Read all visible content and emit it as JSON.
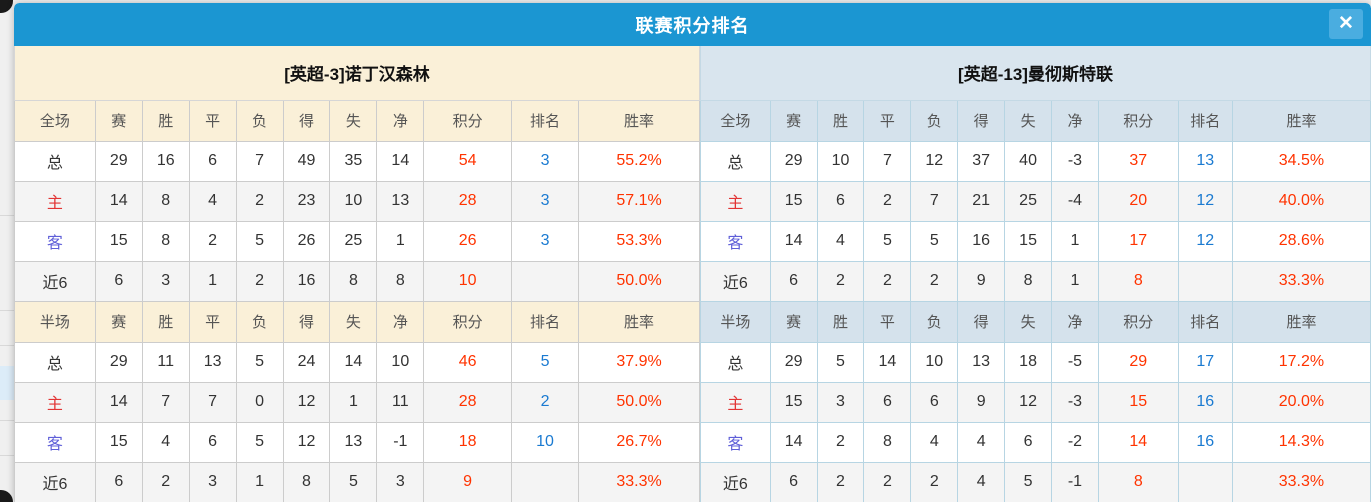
{
  "dialog": {
    "title": "联赛积分排名",
    "close_label": "✕"
  },
  "colors": {
    "titlebar_blue": "#1b96d2",
    "close_button_blue": "#4aade0",
    "left_theme_cream": "#faf0d8",
    "right_theme_lightblue": "#d9e5ee",
    "left_border_gray": "#cccccc",
    "right_border_blue": "#b7d5e3",
    "points_red": "#ff3300",
    "rank_blue": "#1a7ad1",
    "winrate_red": "#ff3300",
    "home_label_red": "#e23434",
    "away_label_blue": "#5f5fd8",
    "row_alt_gray": "#f4f4f4"
  },
  "table_headers": {
    "full_label": "全场",
    "half_label": "半场",
    "stat_cols": [
      "赛",
      "胜",
      "平",
      "负",
      "得",
      "失",
      "净",
      "积分",
      "排名",
      "胜率"
    ]
  },
  "teams": [
    {
      "side": "left",
      "title": "[英超-3]诺丁汉森林",
      "full_rows": [
        {
          "label": "总",
          "accent": "none",
          "stats": [
            "29",
            "16",
            "6",
            "7",
            "49",
            "35",
            "14",
            "54",
            "3",
            "55.2%"
          ]
        },
        {
          "label": "主",
          "accent": "home",
          "stats": [
            "14",
            "8",
            "4",
            "2",
            "23",
            "10",
            "13",
            "28",
            "3",
            "57.1%"
          ]
        },
        {
          "label": "客",
          "accent": "away",
          "stats": [
            "15",
            "8",
            "2",
            "5",
            "26",
            "25",
            "1",
            "26",
            "3",
            "53.3%"
          ]
        },
        {
          "label": "近6",
          "accent": "none",
          "stats": [
            "6",
            "3",
            "1",
            "2",
            "16",
            "8",
            "8",
            "10",
            "",
            "50.0%"
          ]
        }
      ],
      "half_rows": [
        {
          "label": "总",
          "accent": "none",
          "stats": [
            "29",
            "11",
            "13",
            "5",
            "24",
            "14",
            "10",
            "46",
            "5",
            "37.9%"
          ]
        },
        {
          "label": "主",
          "accent": "home",
          "stats": [
            "14",
            "7",
            "7",
            "0",
            "12",
            "1",
            "11",
            "28",
            "2",
            "50.0%"
          ]
        },
        {
          "label": "客",
          "accent": "away",
          "stats": [
            "15",
            "4",
            "6",
            "5",
            "12",
            "13",
            "-1",
            "18",
            "10",
            "26.7%"
          ]
        },
        {
          "label": "近6",
          "accent": "none",
          "stats": [
            "6",
            "2",
            "3",
            "1",
            "8",
            "5",
            "3",
            "9",
            "",
            "33.3%"
          ]
        }
      ]
    },
    {
      "side": "right",
      "title": "[英超-13]曼彻斯特联",
      "full_rows": [
        {
          "label": "总",
          "accent": "none",
          "stats": [
            "29",
            "10",
            "7",
            "12",
            "37",
            "40",
            "-3",
            "37",
            "13",
            "34.5%"
          ]
        },
        {
          "label": "主",
          "accent": "home",
          "stats": [
            "15",
            "6",
            "2",
            "7",
            "21",
            "25",
            "-4",
            "20",
            "12",
            "40.0%"
          ]
        },
        {
          "label": "客",
          "accent": "away",
          "stats": [
            "14",
            "4",
            "5",
            "5",
            "16",
            "15",
            "1",
            "17",
            "12",
            "28.6%"
          ]
        },
        {
          "label": "近6",
          "accent": "none",
          "stats": [
            "6",
            "2",
            "2",
            "2",
            "9",
            "8",
            "1",
            "8",
            "",
            "33.3%"
          ]
        }
      ],
      "half_rows": [
        {
          "label": "总",
          "accent": "none",
          "stats": [
            "29",
            "5",
            "14",
            "10",
            "13",
            "18",
            "-5",
            "29",
            "17",
            "17.2%"
          ]
        },
        {
          "label": "主",
          "accent": "home",
          "stats": [
            "15",
            "3",
            "6",
            "6",
            "9",
            "12",
            "-3",
            "15",
            "16",
            "20.0%"
          ]
        },
        {
          "label": "客",
          "accent": "away",
          "stats": [
            "14",
            "2",
            "8",
            "4",
            "4",
            "6",
            "-2",
            "14",
            "16",
            "14.3%"
          ]
        },
        {
          "label": "近6",
          "accent": "none",
          "stats": [
            "6",
            "2",
            "2",
            "2",
            "4",
            "5",
            "-1",
            "8",
            "",
            "33.3%"
          ]
        }
      ]
    }
  ],
  "layout_hints": {
    "left_col_widths_pct": [
      11.8,
      6.85,
      6.85,
      6.85,
      6.85,
      6.85,
      6.85,
      6.85,
      12.8,
      9.8,
      17.65
    ],
    "right_col_widths_pct": [
      10.4,
      7.0,
      7.0,
      7.0,
      7.0,
      7.0,
      7.0,
      7.0,
      11.9,
      8.1,
      20.6
    ]
  }
}
